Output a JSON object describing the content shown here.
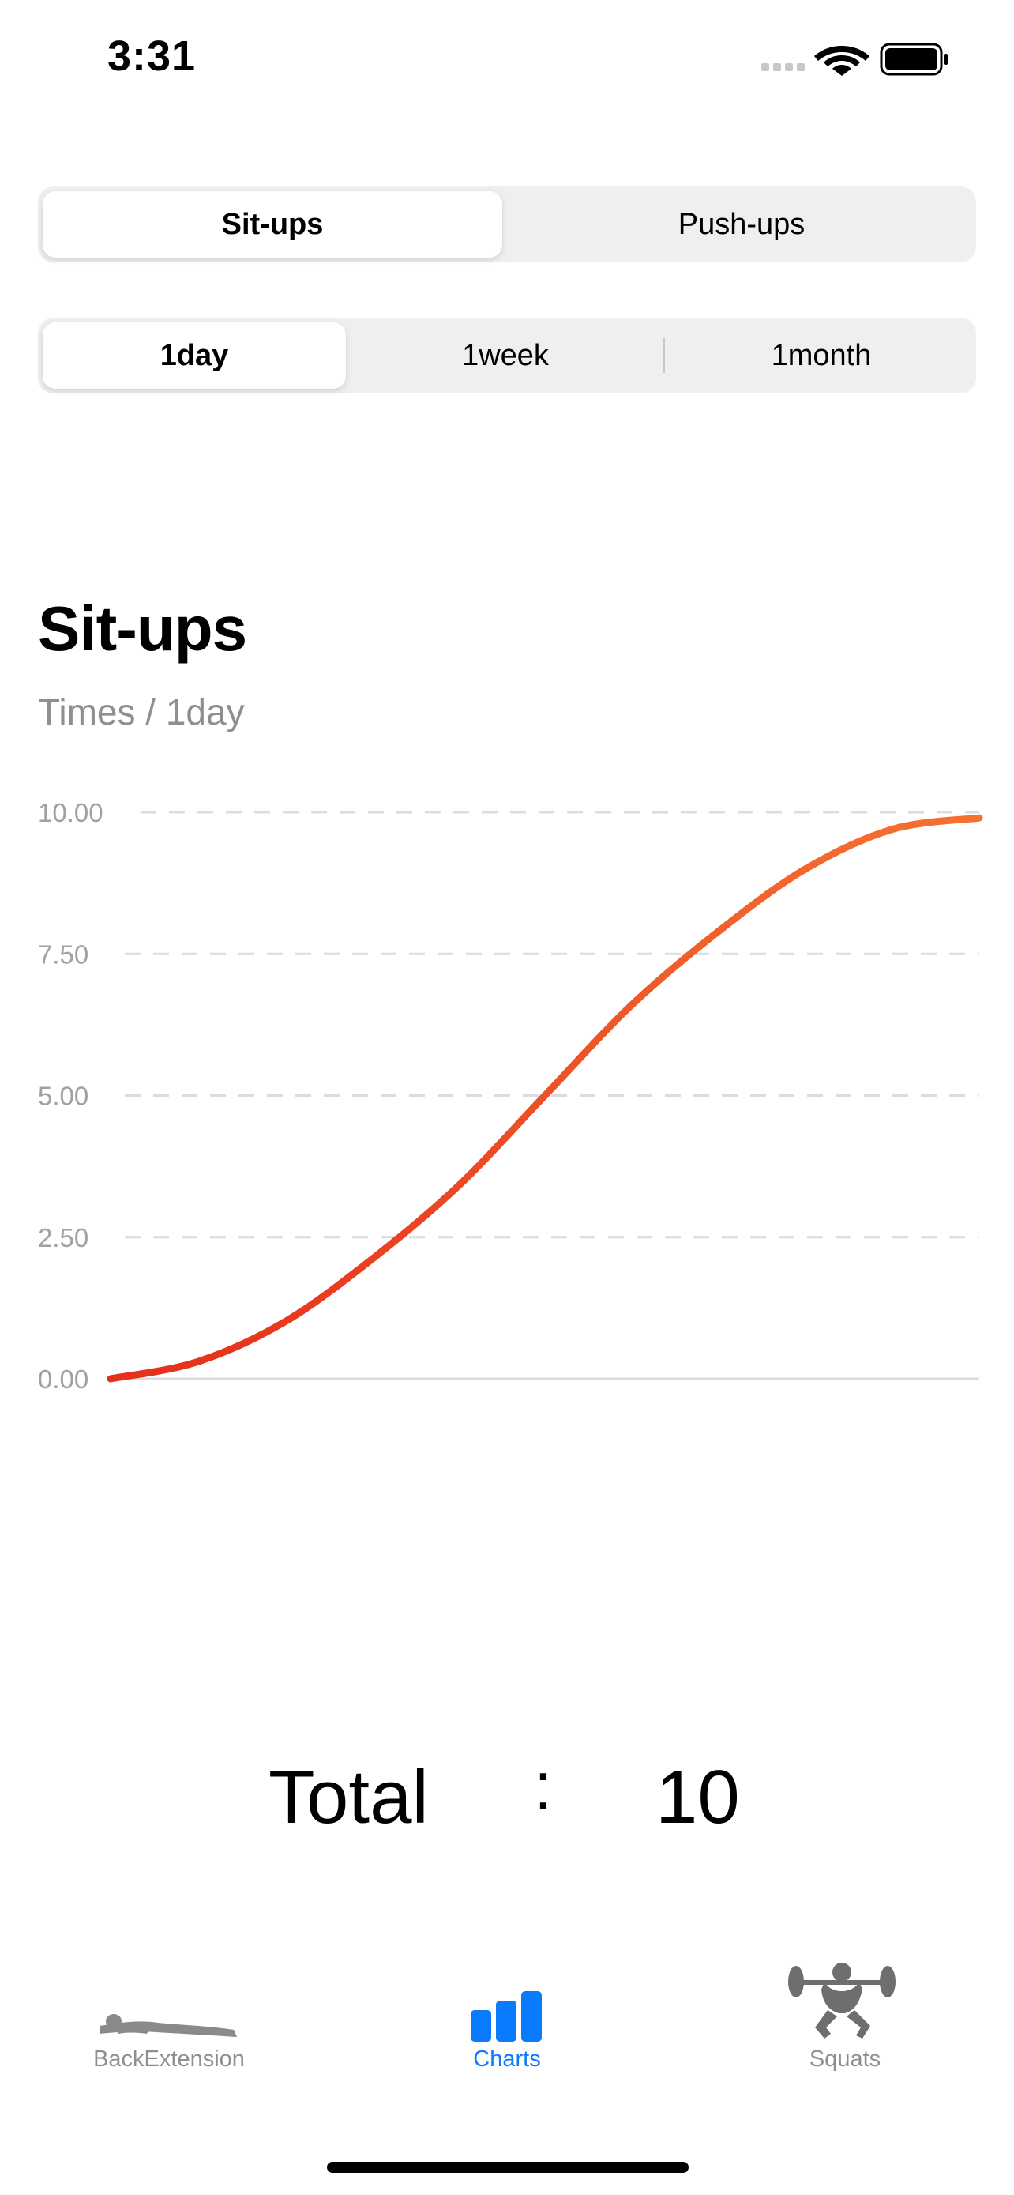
{
  "status_bar": {
    "time": "3:31"
  },
  "exercise_selector": {
    "options": [
      "Sit-ups",
      "Push-ups"
    ],
    "selected": "Sit-ups"
  },
  "range_selector": {
    "options": [
      "1day",
      "1week",
      "1month"
    ],
    "selected": "1day"
  },
  "chart_header": {
    "title": "Sit-ups",
    "subtitle": "Times / 1day"
  },
  "chart_data": {
    "type": "line",
    "x": [
      0,
      0.1,
      0.2,
      0.3,
      0.4,
      0.5,
      0.6,
      0.7,
      0.8,
      0.9,
      1.0
    ],
    "y": [
      0.0,
      0.3,
      1.0,
      2.1,
      3.4,
      5.0,
      6.6,
      7.9,
      9.0,
      9.7,
      9.9
    ],
    "ylim": [
      0,
      10
    ],
    "yticks": [
      "0.00",
      "2.50",
      "5.00",
      "7.50",
      "10.00"
    ],
    "grid": true,
    "line_color_start": "#e5301b",
    "line_color_end": "#f57031"
  },
  "total": {
    "label": "Total",
    "separator": ":",
    "value": "10"
  },
  "tab_bar": {
    "items": [
      {
        "label": "BackExtension",
        "icon": "back-extension-icon",
        "active": false
      },
      {
        "label": "Charts",
        "icon": "bar-chart-icon",
        "active": true
      },
      {
        "label": "Squats",
        "icon": "squats-icon",
        "active": false
      }
    ]
  },
  "colors": {
    "accent": "#0a7aff",
    "inactive": "#8e8e93",
    "segment_bg": "#efeff0"
  }
}
